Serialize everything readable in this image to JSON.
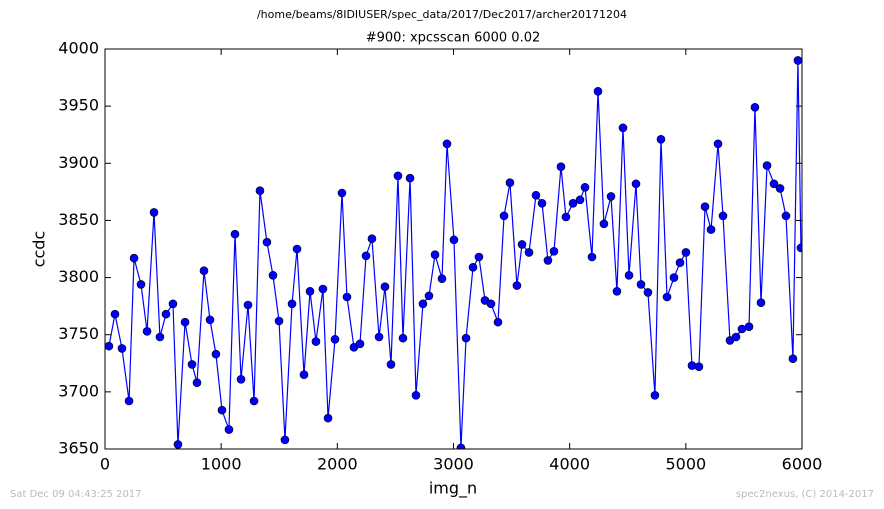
{
  "chart_data": {
    "type": "line",
    "title": "/home/beams/8IDIUSER/spec_data/2017/Dec2017/archer20171204",
    "subtitle": "#900: xpcsscan 6000 0.02",
    "x_label": "img_n",
    "y_label": "ccdc",
    "x": [
      34,
      86,
      146,
      207,
      250,
      310,
      362,
      422,
      473,
      525,
      585,
      628,
      689,
      749,
      792,
      852,
      904,
      955,
      1007,
      1067,
      1119,
      1171,
      1231,
      1283,
      1334,
      1394,
      1446,
      1498,
      1549,
      1610,
      1653,
      1713,
      1765,
      1816,
      1876,
      1920,
      1980,
      2040,
      2083,
      2143,
      2195,
      2247,
      2298,
      2359,
      2410,
      2462,
      2522,
      2565,
      2626,
      2677,
      2737,
      2789,
      2841,
      2901,
      2944,
      3004,
      3064,
      3108,
      3168,
      3219,
      3271,
      3323,
      3383,
      3435,
      3486,
      3546,
      3590,
      3650,
      3710,
      3762,
      3813,
      3865,
      3925,
      3968,
      4029,
      4089,
      4132,
      4192,
      4244,
      4295,
      4356,
      4407,
      4459,
      4511,
      4571,
      4614,
      4674,
      4734,
      4786,
      4838,
      4898,
      4950,
      5001,
      5053,
      5113,
      5165,
      5217,
      5277,
      5320,
      5380,
      5432,
      5483,
      5544,
      5595,
      5647,
      5699,
      5759,
      5811,
      5862,
      5922,
      5965,
      5991
    ],
    "series": [
      {
        "name": "ccdc",
        "color": "#0000ff",
        "values": [
          3740,
          3768,
          3738,
          3692,
          3817,
          3794,
          3753,
          3857,
          3748,
          3768,
          3777,
          3654,
          3761,
          3724,
          3708,
          3806,
          3763,
          3733,
          3684,
          3667,
          3838,
          3711,
          3776,
          3692,
          3876,
          3831,
          3802,
          3762,
          3658,
          3777,
          3825,
          3715,
          3788,
          3744,
          3790,
          3677,
          3746,
          3874,
          3783,
          3739,
          3742,
          3819,
          3834,
          3748,
          3792,
          3724,
          3889,
          3747,
          3887,
          3697,
          3777,
          3784,
          3820,
          3799,
          3917,
          3833,
          3651,
          3747,
          3809,
          3818,
          3780,
          3777,
          3761,
          3854,
          3883,
          3793,
          3829,
          3822,
          3872,
          3865,
          3815,
          3823,
          3897,
          3853,
          3865,
          3868,
          3879,
          3818,
          3963,
          3847,
          3871,
          3788,
          3931,
          3802,
          3882,
          3794,
          3787,
          3697,
          3921,
          3783,
          3800,
          3813,
          3822,
          3723,
          3722,
          3862,
          3842,
          3917,
          3854,
          3745,
          3748,
          3755,
          3757,
          3949,
          3778,
          3898,
          3882,
          3878,
          3854,
          3729,
          3990,
          3826
        ]
      }
    ],
    "xlim": [
      0,
      6000
    ],
    "xticks": [
      0,
      1000,
      2000,
      3000,
      4000,
      5000,
      6000
    ],
    "ylim": [
      3650,
      4000
    ],
    "yticks": [
      3650,
      3700,
      3750,
      3800,
      3850,
      3900,
      3950,
      4000
    ],
    "grid": false
  },
  "footer_left": "Sat Dec 09 04:43:25 2017",
  "footer_right": "spec2nexus, (C) 2014-2017"
}
